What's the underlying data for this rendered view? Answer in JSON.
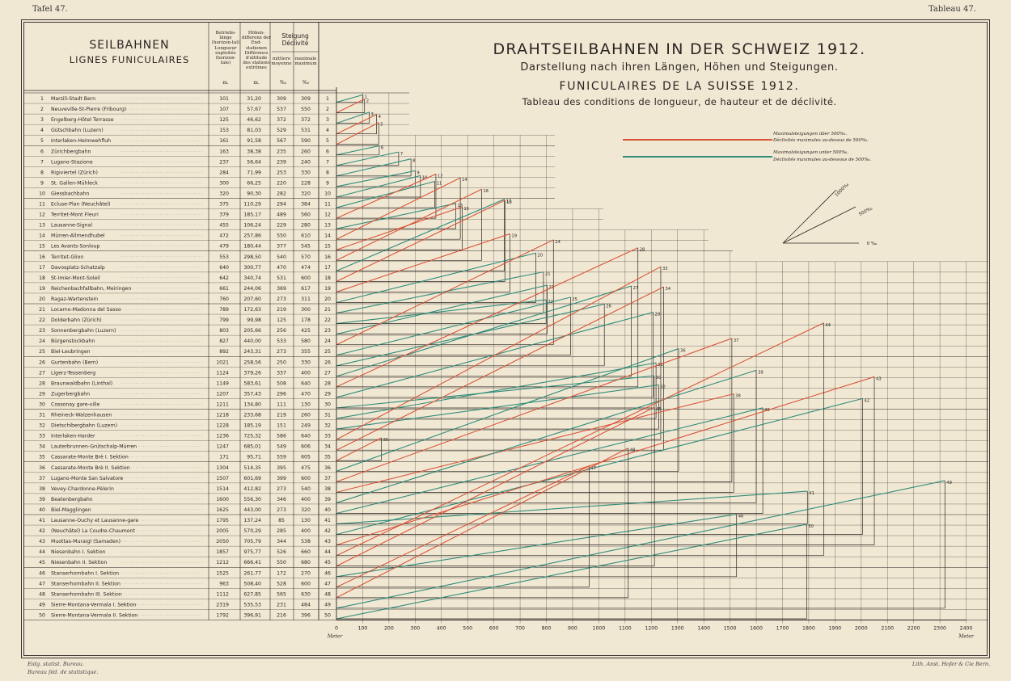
{
  "corners": {
    "left": "Tafel 47.",
    "right": "Tableau 47."
  },
  "left_title": {
    "de": "SEILBAHNEN",
    "fr": "LIGNES FUNICULAIRES"
  },
  "column_headers": {
    "length": "Betriebs-länge (horizon-tal) Longueur exploitée (horizon-tale)",
    "length_unit": "m.",
    "height": "Höhen-differenz der End-stationen Différence d'altitude des stations extrêmes",
    "height_unit": "m.",
    "gradient": "Steigung Déclivité",
    "mean": "mittlere moyenne",
    "max": "maximale maximum",
    "mean_unit": "‰",
    "max_unit": "‰"
  },
  "title": {
    "de": "DRAHTSEILBAHNEN IN DER SCHWEIZ 1912.",
    "de_sub": "Darstellung nach ihren Längen, Höhen und Steigungen.",
    "fr": "FUNICULAIRES DE LA SUISSE 1912.",
    "fr_sub": "Tableau des conditions de longueur, de hauteur et de déclivité."
  },
  "legend": {
    "red_de": "Maximalsteigungen über 500‰.",
    "red_fr": "Déclivités maximales au-dessus de 500‰.",
    "green_de": "Maximalsteigungen unter 500‰.",
    "green_fr": "Déclivités maximales au-dessous de 500‰.",
    "red_color": "#d9553a",
    "green_color": "#2f8c7a"
  },
  "angle_key": {
    "a1000": "1000‰",
    "a500": "500‰",
    "a0": "0 ‰"
  },
  "footer": {
    "left1": "Eidg. statist. Bureau.",
    "left2": "Bureau féd. de statistique.",
    "right": "Lith. Anst. Hofer & Cie Bern."
  },
  "chart_data": {
    "type": "line",
    "xlabel": "Meter",
    "xlim": [
      0,
      2400
    ],
    "x_ticks": [
      0,
      100,
      200,
      300,
      400,
      500,
      600,
      700,
      800,
      900,
      1000,
      1100,
      1200,
      1300,
      1400,
      1500,
      1600,
      1700,
      1800,
      1900,
      2000,
      2100,
      2200,
      2300,
      2400
    ],
    "rows": [
      {
        "n": "1",
        "name": "Marzili-Stadt Bern",
        "length": "101",
        "height": "31,20",
        "mean": "309",
        "max": "309"
      },
      {
        "n": "2",
        "name": "Neuveville-St-Pierre (Fribourg)",
        "length": "107",
        "height": "57,67",
        "mean": "537",
        "max": "550"
      },
      {
        "n": "3",
        "name": "Engelberg-Hôtel Terrasse",
        "length": "125",
        "height": "46,62",
        "mean": "372",
        "max": "372"
      },
      {
        "n": "4",
        "name": "Gütschbahn (Luzern)",
        "length": "153",
        "height": "81,03",
        "mean": "529",
        "max": "531"
      },
      {
        "n": "5",
        "name": "Interlaken-Heimwehfluh",
        "length": "161",
        "height": "91,58",
        "mean": "567",
        "max": "590"
      },
      {
        "n": "6",
        "name": "Zürichbergbahn",
        "length": "163",
        "height": "38,38",
        "mean": "235",
        "max": "260"
      },
      {
        "n": "7",
        "name": "Lugano-Stazione",
        "length": "237",
        "height": "56,64",
        "mean": "239",
        "max": "240"
      },
      {
        "n": "8",
        "name": "Rigiviertel (Zürich)",
        "length": "284",
        "height": "71,99",
        "mean": "253",
        "max": "330"
      },
      {
        "n": "9",
        "name": "St. Gallen-Mühleck",
        "length": "300",
        "height": "66,25",
        "mean": "220",
        "max": "228"
      },
      {
        "n": "10",
        "name": "Giessbachbahn",
        "length": "320",
        "height": "90,30",
        "mean": "282",
        "max": "320"
      },
      {
        "n": "11",
        "name": "Ecluse-Plan (Neuchâtel)",
        "length": "375",
        "height": "110,29",
        "mean": "294",
        "max": "384"
      },
      {
        "n": "12",
        "name": "Territet-Mont Fleuri",
        "length": "379",
        "height": "185,17",
        "mean": "489",
        "max": "560"
      },
      {
        "n": "13",
        "name": "Lausanne-Signal",
        "length": "455",
        "height": "106,24",
        "mean": "229",
        "max": "280"
      },
      {
        "n": "14",
        "name": "Mürren-Allmendhubel",
        "length": "472",
        "height": "257,86",
        "mean": "550",
        "max": "610"
      },
      {
        "n": "15",
        "name": "Les Avants-Sonloup",
        "length": "479",
        "height": "180,44",
        "mean": "377",
        "max": "545"
      },
      {
        "n": "16",
        "name": "Territet-Glion",
        "length": "553",
        "height": "298,50",
        "mean": "540",
        "max": "570"
      },
      {
        "n": "17",
        "name": "Davosplatz-Schatzalp",
        "length": "640",
        "height": "300,77",
        "mean": "470",
        "max": "474"
      },
      {
        "n": "18",
        "name": "St-Imier-Mont-Soleil",
        "length": "642",
        "height": "340,74",
        "mean": "531",
        "max": "600"
      },
      {
        "n": "19",
        "name": "Reichenbachfallbahn, Meiringen",
        "length": "661",
        "height": "244,06",
        "mean": "369",
        "max": "617"
      },
      {
        "n": "20",
        "name": "Ragaz-Wartenstein",
        "length": "760",
        "height": "207,60",
        "mean": "273",
        "max": "311"
      },
      {
        "n": "21",
        "name": "Locarno-Madonna del Sasso",
        "length": "789",
        "height": "172,63",
        "mean": "219",
        "max": "300"
      },
      {
        "n": "22",
        "name": "Dolderbahn (Zürich)",
        "length": "799",
        "height": "99,98",
        "mean": "125",
        "max": "178"
      },
      {
        "n": "23",
        "name": "Sonnenbergbahn (Luzern)",
        "length": "803",
        "height": "205,66",
        "mean": "256",
        "max": "425"
      },
      {
        "n": "24",
        "name": "Bürgenstockbahn",
        "length": "827",
        "height": "440,00",
        "mean": "533",
        "max": "580"
      },
      {
        "n": "25",
        "name": "Biel-Leubringen",
        "length": "892",
        "height": "243,31",
        "mean": "273",
        "max": "355"
      },
      {
        "n": "26",
        "name": "Gurtenbahn (Bern)",
        "length": "1021",
        "height": "258,56",
        "mean": "250",
        "max": "330"
      },
      {
        "n": "27",
        "name": "Ligerz-Tessenberg",
        "length": "1124",
        "height": "379,26",
        "mean": "337",
        "max": "400"
      },
      {
        "n": "28",
        "name": "Braunwaldbahn (Linthal)",
        "length": "1149",
        "height": "583,61",
        "mean": "508",
        "max": "640"
      },
      {
        "n": "29",
        "name": "Zugerbergbahn",
        "length": "1207",
        "height": "357,43",
        "mean": "296",
        "max": "470"
      },
      {
        "n": "30",
        "name": "Cossonay gare-ville",
        "length": "1211",
        "height": "134,80",
        "mean": "111",
        "max": "130"
      },
      {
        "n": "31",
        "name": "Rheineck-Walzenhausen",
        "length": "1218",
        "height": "233,68",
        "mean": "219",
        "max": "260"
      },
      {
        "n": "32",
        "name": "Dietschibergbahn (Luzern)",
        "length": "1228",
        "height": "185,19",
        "mean": "151",
        "max": "249"
      },
      {
        "n": "33",
        "name": "Interlaken-Harder",
        "length": "1236",
        "height": "725,32",
        "mean": "586",
        "max": "640"
      },
      {
        "n": "34",
        "name": "Lauterbrunnen-Grütschalp-Mürren",
        "length": "1247",
        "height": "685,01",
        "mean": "549",
        "max": "606"
      },
      {
        "n": "35",
        "name": "Cassarate-Monte Brè I. Sektion",
        "length": "171",
        "height": "95,71",
        "mean": "559",
        "max": "605"
      },
      {
        "n": "36",
        "name": "Cassarate-Monte Brè II. Sektion",
        "length": "1304",
        "height": "514,35",
        "mean": "395",
        "max": "475"
      },
      {
        "n": "37",
        "name": "Lugano-Monte San Salvatore",
        "length": "1507",
        "height": "601,69",
        "mean": "399",
        "max": "600"
      },
      {
        "n": "38",
        "name": "Vevey-Chardonne-Pèlerin",
        "length": "1514",
        "height": "412,82",
        "mean": "273",
        "max": "540"
      },
      {
        "n": "39",
        "name": "Beatenbergbahn",
        "length": "1600",
        "height": "556,30",
        "mean": "346",
        "max": "400"
      },
      {
        "n": "40",
        "name": "Biel-Magglingen",
        "length": "1625",
        "height": "443,00",
        "mean": "273",
        "max": "320"
      },
      {
        "n": "41",
        "name": "Lausanne-Ouchy et Lausanne-gare",
        "length": "1795",
        "height": "137,24",
        "mean": "85",
        "max": "130"
      },
      {
        "n": "42",
        "name": "(Neuchâtel) La Coudre-Chaumont",
        "length": "2005",
        "height": "570,29",
        "mean": "285",
        "max": "400"
      },
      {
        "n": "43",
        "name": "Muottas-Muraigl (Samaden)",
        "length": "2050",
        "height": "705,79",
        "mean": "344",
        "max": "538"
      },
      {
        "n": "44",
        "name": "Niesenbahn I. Sektion",
        "length": "1857",
        "height": "975,77",
        "mean": "526",
        "max": "660"
      },
      {
        "n": "45",
        "name": "Niesenbahn II. Sektion",
        "length": "1212",
        "height": "666,41",
        "mean": "550",
        "max": "680"
      },
      {
        "n": "46",
        "name": "Stanserhornbahn I. Sektion",
        "length": "1525",
        "height": "261,77",
        "mean": "172",
        "max": "270"
      },
      {
        "n": "47",
        "name": "Stanserhornbahn II. Sektion",
        "length": "963",
        "height": "508,40",
        "mean": "528",
        "max": "600"
      },
      {
        "n": "48",
        "name": "Stanserhornbahn III. Sektion",
        "length": "1112",
        "height": "627,85",
        "mean": "565",
        "max": "630"
      },
      {
        "n": "49",
        "name": "Sierre-Montana-Vermala I. Sektion",
        "length": "2319",
        "height": "535,53",
        "mean": "231",
        "max": "484"
      },
      {
        "n": "50",
        "name": "Sierre-Montana-Vermala II. Sektion",
        "length": "1792",
        "height": "396,91",
        "mean": "216",
        "max": "396"
      }
    ]
  }
}
